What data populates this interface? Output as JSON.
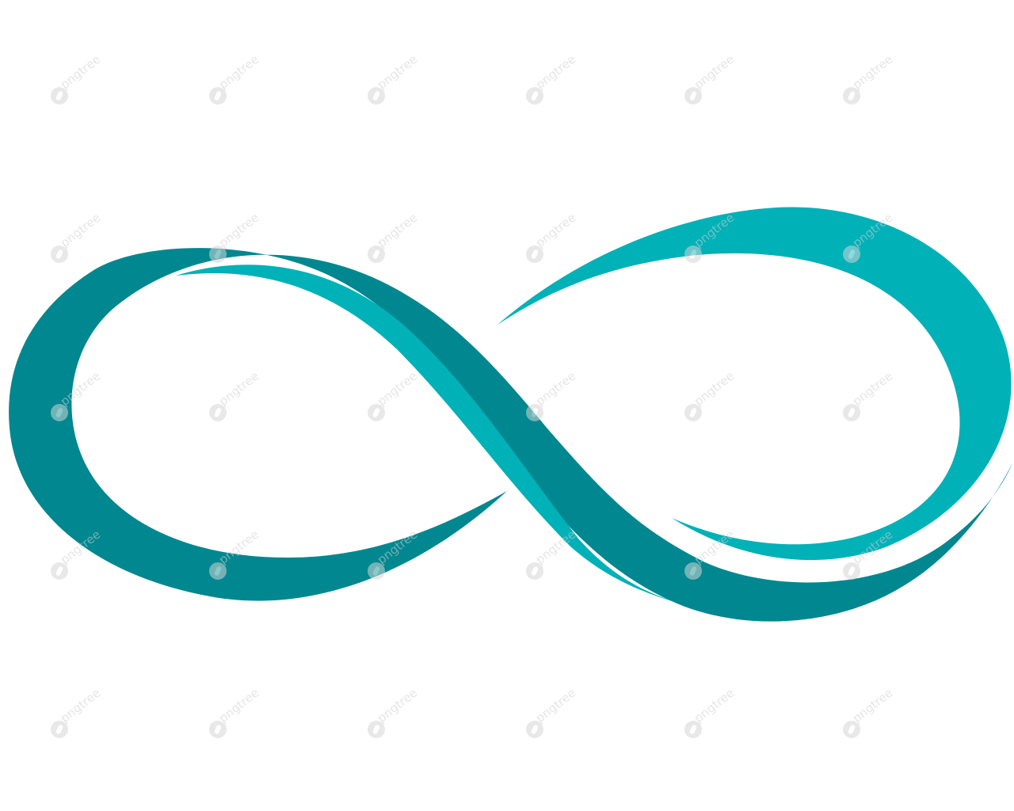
{
  "logo": {
    "icon": "infinity-icon",
    "colors": {
      "dark_teal": "#00878f",
      "light_teal": "#00b1b8",
      "background": "#ffffff"
    }
  },
  "watermark": {
    "text": "pngtree",
    "icon": "pngtree-logo-icon"
  }
}
